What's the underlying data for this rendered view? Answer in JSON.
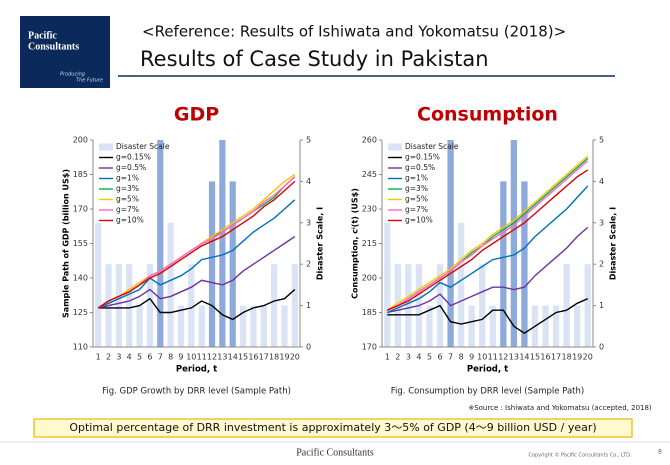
{
  "header": {
    "logo": [
      "Pacific",
      "Consultants"
    ],
    "tagline": [
      "Producing",
      "The Future"
    ],
    "reference": "<Reference: Results of Ishiwata and Yokomatsu (2018)>",
    "title": "Results of Case Study in Pakistan"
  },
  "chart_data": [
    {
      "type": "combo",
      "title": "GDP",
      "caption": "Fig.   GDP Growth by DRR level (Sample Path)",
      "xlabel": "Period, t",
      "ylabel": "Sample Path of GDP  (billion US$)",
      "y2label": "Disaster Scale, I",
      "categories": [
        1,
        2,
        3,
        4,
        5,
        6,
        7,
        8,
        9,
        10,
        11,
        12,
        13,
        14,
        15,
        16,
        17,
        18,
        19,
        20
      ],
      "ylim": [
        110,
        200
      ],
      "yticks": [
        110,
        125,
        140,
        155,
        170,
        185,
        200
      ],
      "y2lim": [
        0,
        5
      ],
      "y2ticks": [
        0,
        1,
        2,
        3,
        4,
        5
      ],
      "series": [
        {
          "name": "Disaster Scale",
          "type": "bar",
          "axis": "y2",
          "color": "#dae3f3",
          "colors": [
            "#dae3f3",
            "#dae3f3",
            "#dae3f3",
            "#dae3f3",
            "#dae3f3",
            "#dae3f3",
            "#8eaadb",
            "#dae3f3",
            "#dae3f3",
            "#dae3f3",
            "#dae3f3",
            "#8eaadb",
            "#8eaadb",
            "#8eaadb",
            "#dae3f3",
            "#dae3f3",
            "#dae3f3",
            "#dae3f3",
            "#dae3f3",
            "#dae3f3"
          ],
          "values": [
            3,
            2,
            2,
            2,
            1,
            2,
            5,
            3,
            1,
            2,
            1,
            4,
            5,
            4,
            1,
            1,
            1,
            2,
            1,
            2
          ]
        },
        {
          "name": "g=0.15%",
          "type": "line",
          "color": "#000000",
          "values": [
            127,
            127,
            127,
            127,
            128,
            131,
            125,
            125,
            126,
            127,
            130,
            128,
            124,
            122,
            125,
            127,
            128,
            130,
            131,
            135
          ]
        },
        {
          "name": "g=0.5%",
          "type": "line",
          "color": "#7030a0",
          "values": [
            127,
            128,
            129,
            130,
            132,
            135,
            131,
            132,
            134,
            136,
            139,
            138,
            137,
            139,
            143,
            146,
            149,
            152,
            155,
            158
          ]
        },
        {
          "name": "g=1%",
          "type": "line",
          "color": "#0070c0",
          "values": [
            127,
            129,
            131,
            133,
            135,
            140,
            137,
            139,
            141,
            144,
            148,
            149,
            150,
            152,
            156,
            160,
            163,
            166,
            170,
            174
          ]
        },
        {
          "name": "g=3%",
          "type": "line",
          "color": "#00b050",
          "values": [
            127,
            130,
            132,
            134,
            137,
            141,
            143,
            146,
            149,
            152,
            155,
            158,
            160,
            163,
            166,
            169,
            172,
            175,
            180,
            184
          ]
        },
        {
          "name": "g=5%",
          "type": "line",
          "color": "#ffc000",
          "values": [
            127,
            130,
            132,
            135,
            138,
            141,
            143,
            146,
            149,
            152,
            155,
            158,
            161,
            164,
            167,
            170,
            174,
            178,
            182,
            185
          ]
        },
        {
          "name": "g=7%",
          "type": "line",
          "color": "#ff66cc",
          "values": [
            127,
            130,
            132,
            134,
            137,
            141,
            143,
            146,
            149,
            152,
            155,
            157,
            160,
            163,
            166,
            169,
            173,
            176,
            180,
            184
          ]
        },
        {
          "name": "g=10%",
          "type": "line",
          "color": "#e00000",
          "values": [
            127,
            130,
            132,
            134,
            137,
            140,
            142,
            145,
            148,
            151,
            154,
            156,
            158,
            161,
            164,
            167,
            171,
            174,
            178,
            182
          ]
        }
      ]
    },
    {
      "type": "combo",
      "title": "Consumption",
      "caption": "Fig. Consumption by DRR level (Sample Path)",
      "xlabel": "Period, t",
      "ylabel": "Consumption, cⁱ(t) (US$)",
      "y2label": "Disaster Scale, I",
      "categories": [
        1,
        2,
        3,
        4,
        5,
        6,
        7,
        8,
        9,
        10,
        11,
        12,
        13,
        14,
        15,
        16,
        17,
        18,
        19,
        20
      ],
      "ylim": [
        170,
        260
      ],
      "yticks": [
        170,
        185,
        200,
        215,
        230,
        245,
        260
      ],
      "y2lim": [
        0,
        5
      ],
      "y2ticks": [
        0,
        1,
        2,
        3,
        4,
        5
      ],
      "series": [
        {
          "name": "Disaster Scale",
          "type": "bar",
          "axis": "y2",
          "color": "#dae3f3",
          "colors": [
            "#dae3f3",
            "#dae3f3",
            "#dae3f3",
            "#dae3f3",
            "#dae3f3",
            "#dae3f3",
            "#8eaadb",
            "#dae3f3",
            "#dae3f3",
            "#dae3f3",
            "#dae3f3",
            "#8eaadb",
            "#8eaadb",
            "#8eaadb",
            "#dae3f3",
            "#dae3f3",
            "#dae3f3",
            "#dae3f3",
            "#dae3f3",
            "#dae3f3"
          ],
          "values": [
            3,
            2,
            2,
            2,
            1,
            2,
            5,
            3,
            1,
            2,
            1,
            4,
            5,
            4,
            1,
            1,
            1,
            2,
            1,
            2
          ]
        },
        {
          "name": "g=0.15%",
          "type": "line",
          "color": "#000000",
          "values": [
            184,
            184,
            184,
            184,
            186,
            188,
            181,
            180,
            181,
            182,
            186,
            186,
            179,
            176,
            179,
            182,
            185,
            186,
            189,
            191
          ]
        },
        {
          "name": "g=0.5%",
          "type": "line",
          "color": "#7030a0",
          "values": [
            185,
            186,
            187,
            188,
            190,
            193,
            188,
            190,
            192,
            194,
            196,
            196,
            195,
            196,
            201,
            205,
            209,
            213,
            218,
            222
          ]
        },
        {
          "name": "g=1%",
          "type": "line",
          "color": "#0070c0",
          "values": [
            185,
            187,
            189,
            191,
            194,
            198,
            196,
            199,
            202,
            205,
            208,
            209,
            210,
            213,
            218,
            222,
            226,
            230,
            235,
            240
          ]
        },
        {
          "name": "g=3%",
          "type": "line",
          "color": "#00b050",
          "values": [
            186,
            188,
            191,
            194,
            197,
            200,
            203,
            207,
            211,
            214,
            218,
            221,
            224,
            228,
            232,
            236,
            240,
            244,
            248,
            252
          ]
        },
        {
          "name": "g=5%",
          "type": "line",
          "color": "#ffc000",
          "values": [
            186,
            189,
            192,
            195,
            198,
            201,
            204,
            208,
            212,
            215,
            219,
            222,
            225,
            229,
            233,
            237,
            241,
            245,
            249,
            253
          ]
        },
        {
          "name": "g=7%",
          "type": "line",
          "color": "#ff66cc",
          "values": [
            186,
            188,
            191,
            194,
            197,
            200,
            203,
            207,
            210,
            214,
            217,
            220,
            223,
            227,
            231,
            235,
            239,
            243,
            247,
            251
          ]
        },
        {
          "name": "g=10%",
          "type": "line",
          "color": "#e00000",
          "values": [
            186,
            188,
            190,
            193,
            196,
            199,
            202,
            205,
            208,
            212,
            215,
            218,
            221,
            224,
            228,
            232,
            236,
            240,
            244,
            247
          ]
        }
      ]
    }
  ],
  "source": "※Source : Ishiwata and Yokomatsu (accepted, 2018)",
  "highlight": "Optimal percentage of DRR investment is approximately 3～5% of GDP (4～9 billion USD / year)",
  "footer": {
    "company": "Pacific Consultants",
    "copyright": "Copyright © Pacific Consultants Co., LTD.",
    "page": "8"
  }
}
